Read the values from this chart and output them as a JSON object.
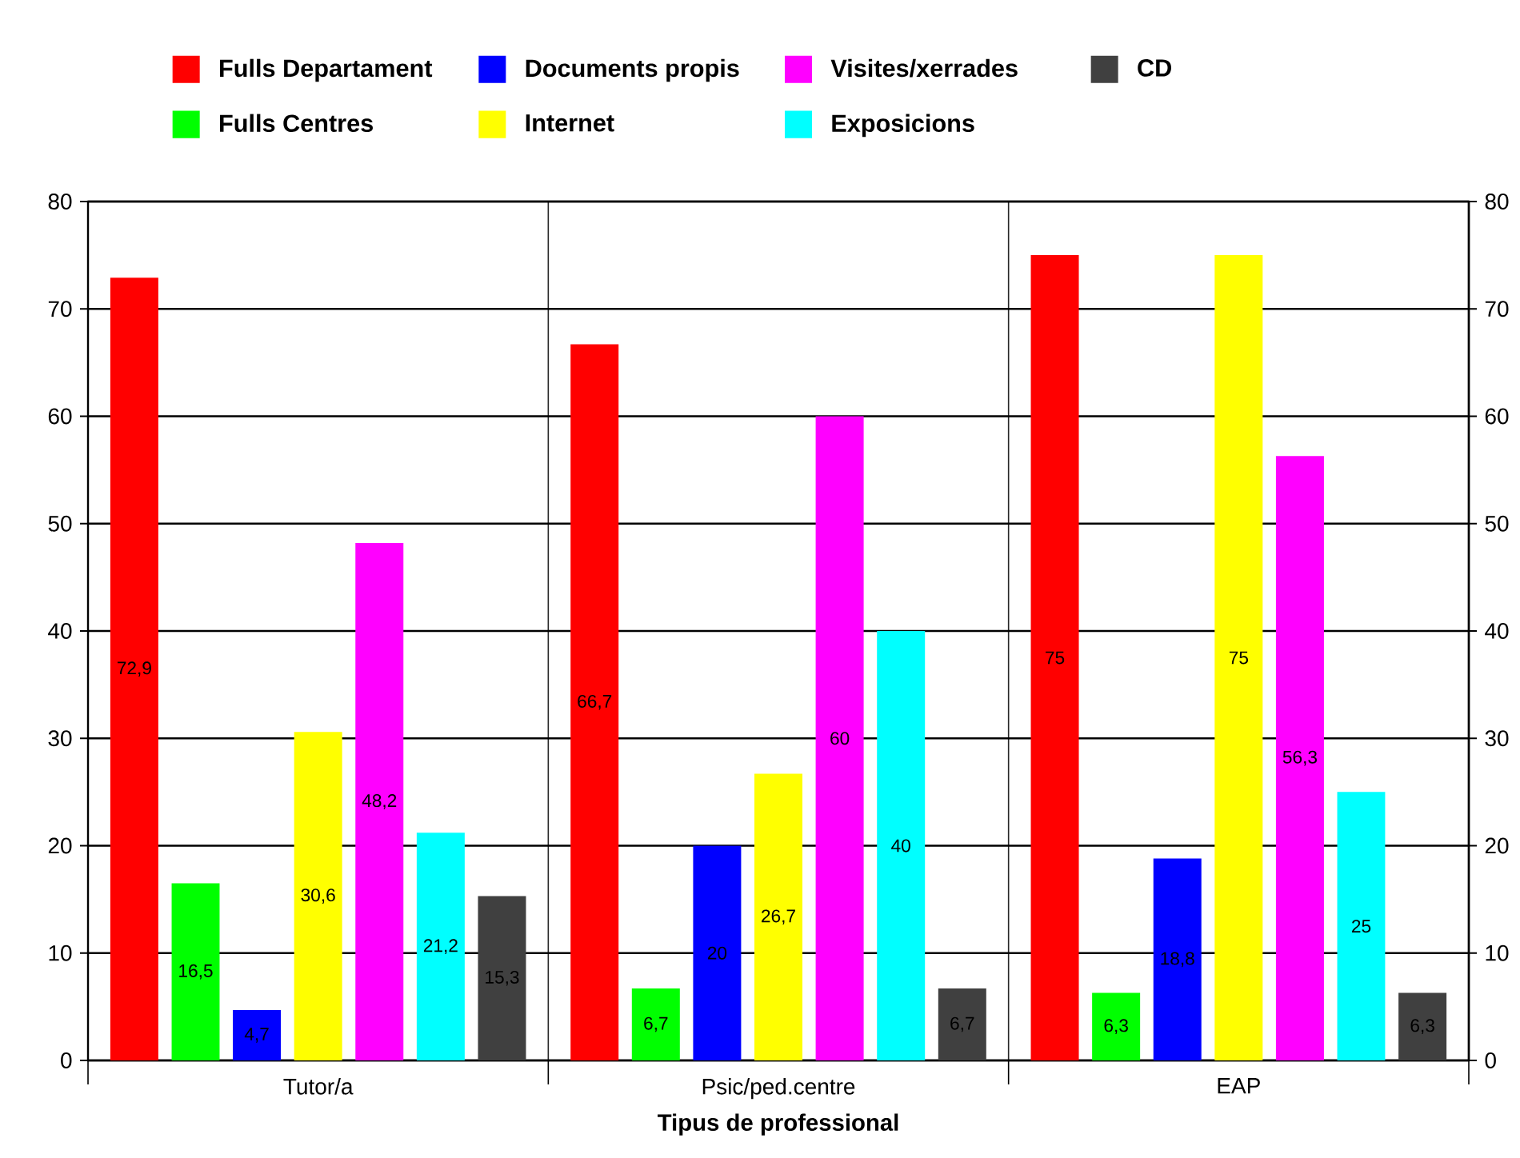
{
  "chart_data": {
    "type": "bar",
    "categories": [
      "Tutor/a",
      "Psic/ped.centre",
      "EAP"
    ],
    "series": [
      {
        "name": "Fulls Departament",
        "color": "#ff0000",
        "values": [
          72.9,
          66.7,
          75
        ],
        "value_labels": [
          "72,9",
          "66,7",
          "75"
        ]
      },
      {
        "name": "Fulls Centres",
        "color": "#00ff00",
        "values": [
          16.5,
          6.7,
          6.3
        ],
        "value_labels": [
          "16,5",
          "6,7",
          "6,3"
        ]
      },
      {
        "name": "Documents propis",
        "color": "#0000ff",
        "values": [
          4.7,
          20,
          18.8
        ],
        "value_labels": [
          "4,7",
          "20",
          "18,8"
        ]
      },
      {
        "name": "Internet",
        "color": "#ffff00",
        "values": [
          30.6,
          26.7,
          75
        ],
        "value_labels": [
          "30,6",
          "26,7",
          "75"
        ]
      },
      {
        "name": "Visites/xerrades",
        "color": "#ff00ff",
        "values": [
          48.2,
          60,
          56.3
        ],
        "value_labels": [
          "48,2",
          "60",
          "56,3"
        ]
      },
      {
        "name": "Exposicions",
        "color": "#00ffff",
        "values": [
          21.2,
          40,
          25
        ],
        "value_labels": [
          "21,2",
          "40",
          "25"
        ]
      },
      {
        "name": "CD",
        "color": "#404040",
        "values": [
          15.3,
          6.7,
          6.3
        ],
        "value_labels": [
          "15,3",
          "6,7",
          "6,3"
        ]
      }
    ],
    "xlabel": "Tipus de professional",
    "ylim": [
      0,
      80
    ],
    "yticks": [
      0,
      10,
      20,
      30,
      40,
      50,
      60,
      70,
      80
    ],
    "y2lim": [
      0,
      80
    ],
    "y2ticks": [
      0,
      10,
      20,
      30,
      40,
      50,
      60,
      70,
      80
    ],
    "grid": true,
    "legend": "top"
  }
}
